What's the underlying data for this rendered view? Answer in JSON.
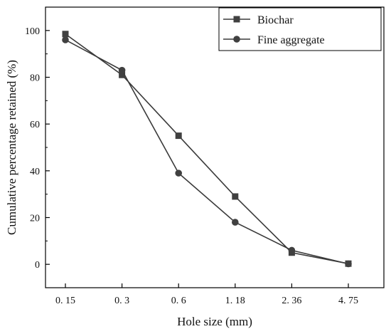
{
  "chart_data": {
    "type": "line",
    "categories": [
      "0. 15",
      "0. 3",
      "0. 6",
      "1. 18",
      "2. 36",
      "4. 75"
    ],
    "series": [
      {
        "name": "Biochar",
        "marker": "square",
        "values": [
          98.5,
          81,
          55,
          29,
          5,
          0.3
        ]
      },
      {
        "name": "Fine aggregate",
        "marker": "circle",
        "values": [
          96,
          83,
          39,
          18,
          6,
          0.2
        ]
      }
    ],
    "xlabel": "Hole size (mm)",
    "ylabel": "Cumulative percentage retained (%)",
    "ylim": [
      -10,
      110
    ],
    "yticks": [
      0,
      20,
      40,
      60,
      80,
      100
    ],
    "grid": false,
    "legend_position": "top-right",
    "colors": {
      "line": "#3a3a3a",
      "marker": "#404040",
      "axis": "#000000"
    }
  }
}
